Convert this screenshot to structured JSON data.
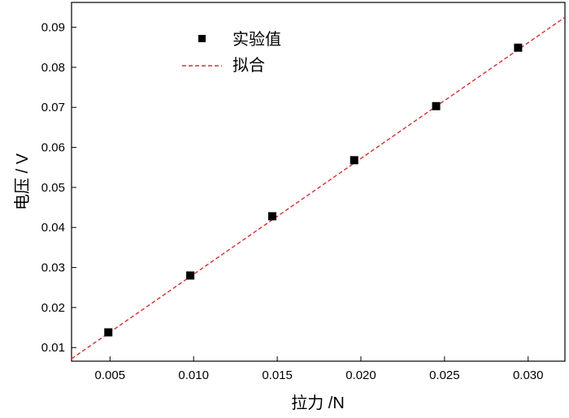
{
  "chart_data": {
    "type": "scatter",
    "xlabel": "拉力 /N",
    "ylabel": "电压 / V",
    "xlim": [
      0.0027,
      0.0322
    ],
    "ylim": [
      0.0066,
      0.0962
    ],
    "xticks": [
      "0.005",
      "0.010",
      "0.015",
      "0.020",
      "0.025",
      "0.030"
    ],
    "yticks": [
      "0.01",
      "0.02",
      "0.03",
      "0.04",
      "0.05",
      "0.06",
      "0.07",
      "0.08",
      "0.09"
    ],
    "grid": false,
    "legend": "top-left",
    "series": [
      {
        "name": "实验值",
        "kind": "scatter",
        "color": "#000000",
        "x": [
          0.0049,
          0.0098,
          0.0147,
          0.0196,
          0.0245,
          0.0294
        ],
        "y": [
          0.0138,
          0.028,
          0.0428,
          0.0568,
          0.0703,
          0.0849
        ]
      },
      {
        "name": "拟合",
        "kind": "line",
        "style": "dashed",
        "color": "#cc3333",
        "x": [
          0.0027,
          0.0322
        ],
        "y": [
          0.0072,
          0.0925
        ]
      }
    ]
  }
}
